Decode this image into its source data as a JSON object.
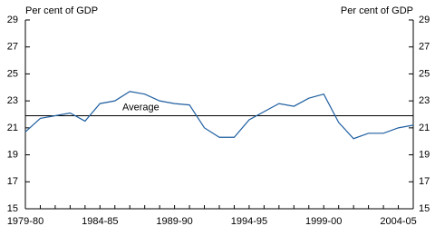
{
  "chart_data": {
    "type": "line",
    "ylabel": "Per cent of GDP",
    "y2label": "Per cent of GDP",
    "categories": [
      "1979-80",
      null,
      null,
      null,
      null,
      "1984-85",
      null,
      null,
      null,
      null,
      "1989-90",
      null,
      null,
      null,
      null,
      "1994-95",
      null,
      null,
      null,
      null,
      "1999-00",
      null,
      null,
      null,
      null,
      "2004-05",
      null
    ],
    "series": [
      {
        "color": "#1f5fa0",
        "values": [
          20.7,
          21.7,
          21.9,
          22.1,
          21.5,
          22.8,
          23.0,
          23.7,
          23.5,
          23.0,
          22.8,
          22.7,
          21.0,
          20.3,
          20.3,
          21.6,
          22.2,
          22.8,
          22.6,
          23.2,
          23.5,
          21.4,
          20.2,
          20.6,
          20.6,
          21.0,
          21.2
        ]
      }
    ],
    "reference_line": {
      "label": "Average",
      "value": 21.9
    },
    "ylim": [
      15,
      29
    ],
    "yticks": [
      15,
      17,
      19,
      21,
      23,
      25,
      27,
      29
    ],
    "y2lim": [
      15,
      29
    ],
    "y2ticks": [
      15,
      17,
      19,
      21,
      23,
      25,
      27,
      29
    ]
  }
}
